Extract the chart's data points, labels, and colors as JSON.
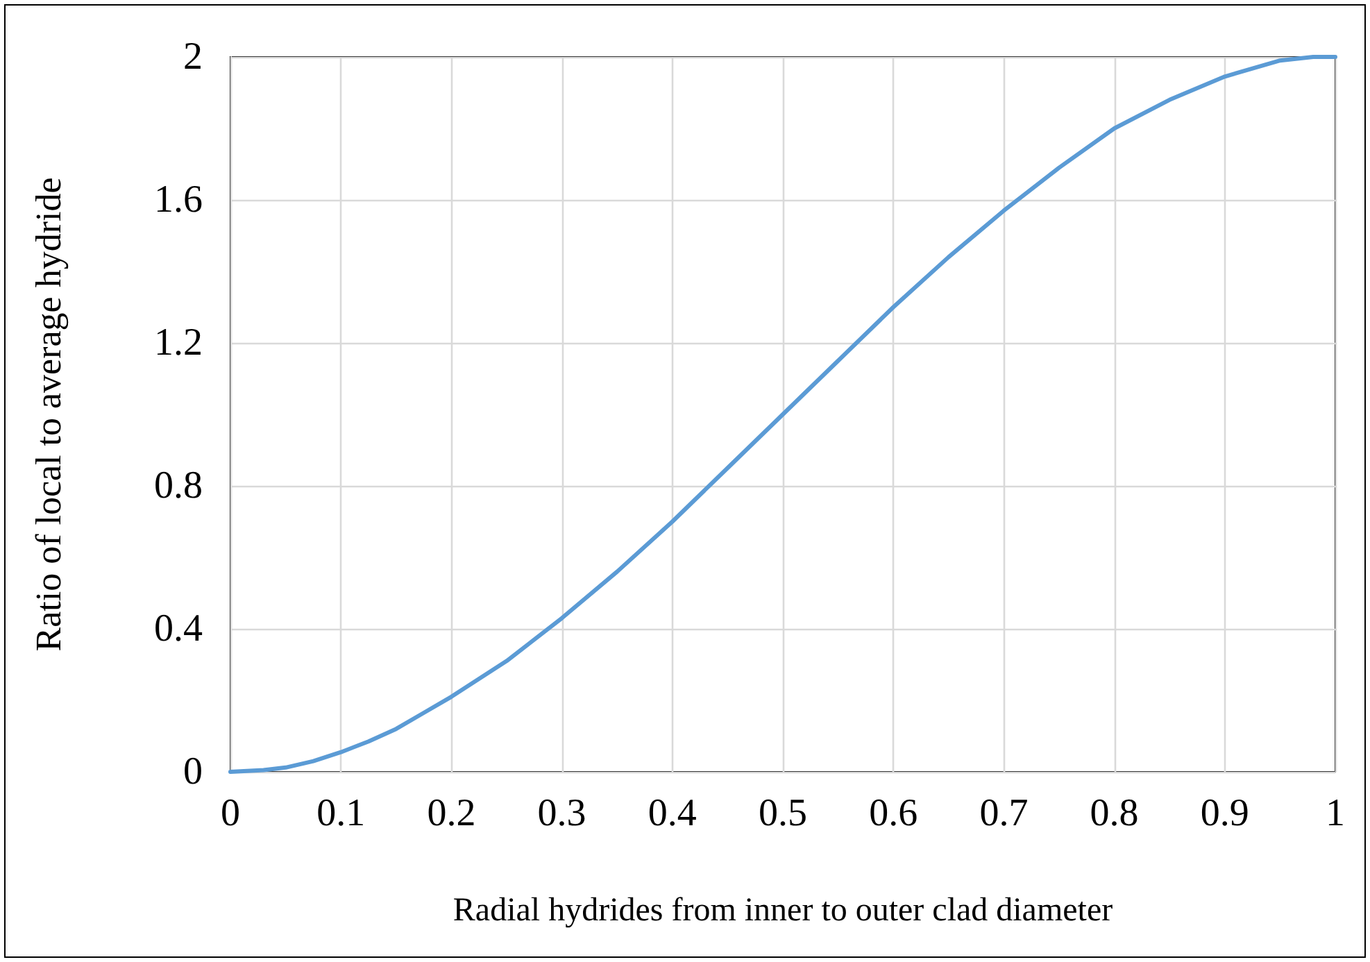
{
  "chart_data": {
    "type": "line",
    "xlabel": "Radial hydrides from inner to outer clad diameter",
    "ylabel": "Ratio of local to average hydride",
    "x": [
      0,
      0.03,
      0.05,
      0.075,
      0.1,
      0.125,
      0.15,
      0.175,
      0.2,
      0.225,
      0.25,
      0.3,
      0.35,
      0.4,
      0.45,
      0.5,
      0.55,
      0.6,
      0.65,
      0.7,
      0.75,
      0.8,
      0.85,
      0.9,
      0.95,
      0.98,
      1
    ],
    "series": [
      {
        "color": "#5b9bd5",
        "values": [
          0,
          0.005,
          0.012,
          0.03,
          0.055,
          0.085,
          0.12,
          0.165,
          0.21,
          0.26,
          0.31,
          0.43,
          0.56,
          0.7,
          0.85,
          1.0,
          1.15,
          1.3,
          1.44,
          1.57,
          1.69,
          1.8,
          1.88,
          1.945,
          1.99,
          2.0,
          2.0
        ]
      }
    ],
    "xlim": [
      0,
      1
    ],
    "xticks": [
      0,
      0.1,
      0.2,
      0.3,
      0.4,
      0.5,
      0.6,
      0.7,
      0.8,
      0.9,
      1
    ],
    "ylim": [
      0,
      2
    ],
    "yticks": [
      0,
      0.4,
      0.8,
      1.2,
      1.6,
      2
    ],
    "grid": true,
    "marker": "none",
    "line_style": "solid"
  }
}
